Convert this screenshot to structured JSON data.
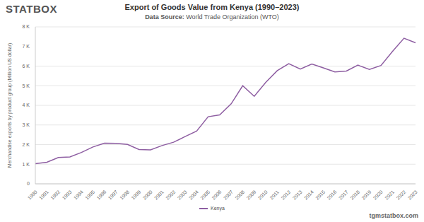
{
  "chart_data": {
    "type": "line",
    "title": "Export of Goods Value from Kenya (1990–2023)",
    "subtitle": "Data Source: World Trade Organization (WTO)",
    "logo": "STATBOX",
    "credit": "tgmstatbox.com",
    "ylabel": "Merchandise exports by product group (Million US dollar)",
    "x": [
      1990,
      1991,
      1992,
      1993,
      1994,
      1995,
      1996,
      1997,
      1998,
      1999,
      2000,
      2001,
      2002,
      2003,
      2004,
      2005,
      2006,
      2007,
      2008,
      2009,
      2010,
      2011,
      2012,
      2013,
      2014,
      2015,
      2016,
      2017,
      2018,
      2019,
      2020,
      2021,
      2022,
      2023
    ],
    "series": [
      {
        "name": "Kenya",
        "color": "#8e5ea2",
        "values": [
          1030,
          1100,
          1340,
          1370,
          1600,
          1880,
          2070,
          2060,
          2010,
          1750,
          1730,
          1950,
          2120,
          2410,
          2690,
          3420,
          3510,
          4080,
          5000,
          4460,
          5170,
          5770,
          6120,
          5850,
          6110,
          5910,
          5700,
          5750,
          6050,
          5830,
          6030,
          6750,
          7420,
          7190
        ]
      }
    ],
    "ylim": [
      0,
      8000
    ],
    "yticks": [
      0,
      {
        "value": 1000,
        "label": "1 K"
      },
      {
        "value": 2000,
        "label": "2 K"
      },
      {
        "value": 3000,
        "label": "3 K"
      },
      {
        "value": 4000,
        "label": "4 K"
      },
      {
        "value": 5000,
        "label": "5 K"
      },
      {
        "value": 6000,
        "label": "6 K"
      },
      {
        "value": 7000,
        "label": "7 K"
      },
      {
        "value": 8000,
        "label": "8 K"
      }
    ],
    "grid": true,
    "legend": "bottom"
  }
}
